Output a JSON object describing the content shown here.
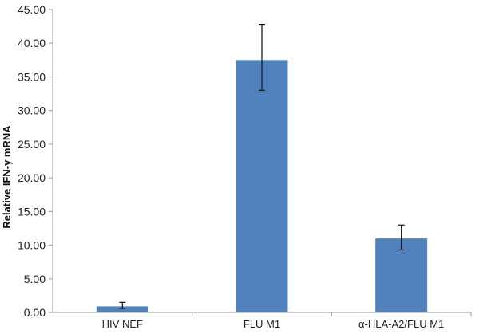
{
  "chart_data": {
    "type": "bar",
    "categories": [
      "HIV NEF",
      "FLU M1",
      "α-HLA-A2/FLU M1"
    ],
    "values": [
      0.9,
      37.5,
      11.0
    ],
    "error_low": [
      0.6,
      33.0,
      9.3
    ],
    "error_high": [
      1.5,
      42.8,
      13.0
    ],
    "title": "",
    "xlabel": "",
    "ylabel": "Relative IFN-γ mRNA",
    "ylim": [
      0,
      45
    ],
    "yticks": [
      "0.00",
      "5.00",
      "10.00",
      "15.00",
      "20.00",
      "25.00",
      "30.00",
      "35.00",
      "40.00",
      "45.00"
    ],
    "bar_color": "#4f81bd",
    "grid": false,
    "legend": "none"
  }
}
